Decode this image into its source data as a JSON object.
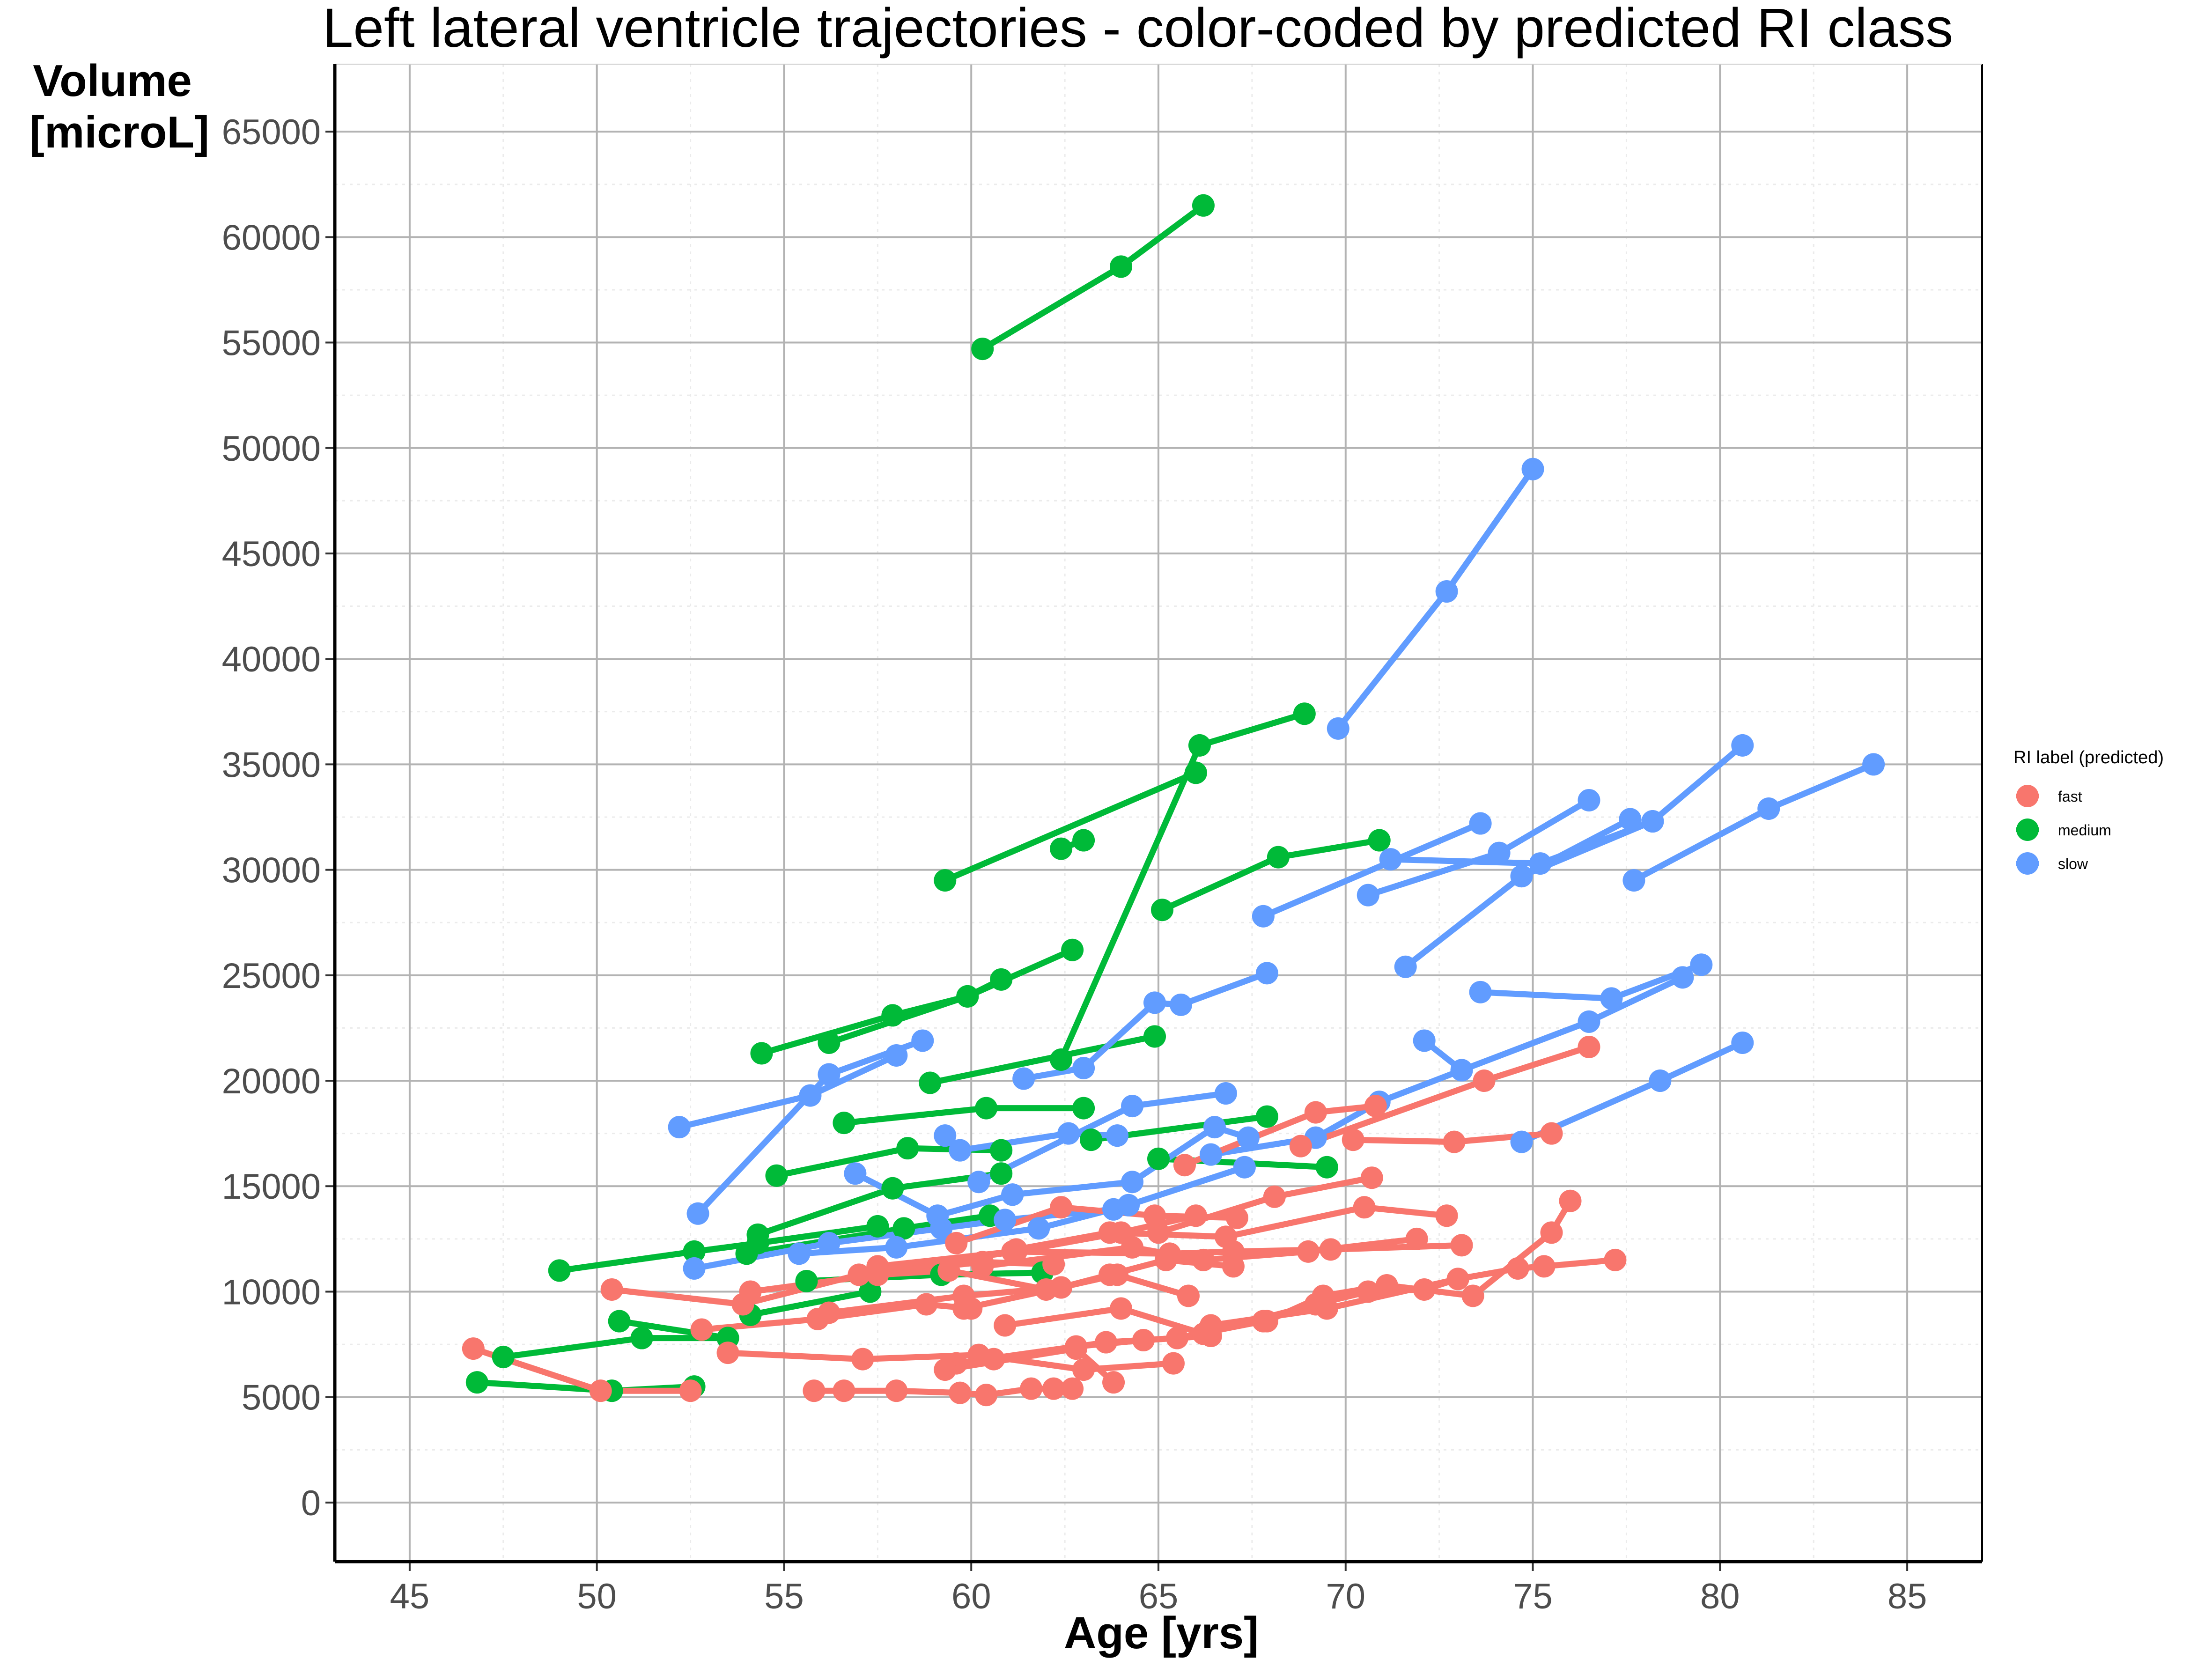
{
  "chart_data": {
    "type": "line",
    "title": "Left lateral ventricle trajectories - color-coded by predicted RI class",
    "xlabel": "Age [yrs]",
    "ylabel": [
      "Volume",
      "[microL]"
    ],
    "xlim": [
      43,
      87
    ],
    "ylim": [
      -2800,
      68200
    ],
    "x_ticks": [
      45,
      50,
      55,
      60,
      65,
      70,
      75,
      80,
      85
    ],
    "y_ticks": [
      0,
      5000,
      10000,
      15000,
      20000,
      25000,
      30000,
      35000,
      40000,
      45000,
      50000,
      55000,
      60000,
      65000
    ],
    "grid": true,
    "legend": {
      "title": "RI label (predicted)",
      "placement": "right",
      "entries": [
        {
          "name": "fast",
          "color": "#F8766D"
        },
        {
          "name": "medium",
          "color": "#00BA38"
        },
        {
          "name": "slow",
          "color": "#619CFF"
        }
      ]
    },
    "series": [
      {
        "name": "medium",
        "color": "#00BA38",
        "x": [
          60.3,
          64.0,
          66.2
        ],
        "y": [
          54700,
          58600,
          61500
        ]
      },
      {
        "name": "medium",
        "color": "#00BA38",
        "x": [
          62.4,
          63.0
        ],
        "y": [
          31000,
          31400
        ]
      },
      {
        "name": "medium",
        "color": "#00BA38",
        "x": [
          59.3,
          66.0
        ],
        "y": [
          29500,
          34600
        ]
      },
      {
        "name": "medium",
        "color": "#00BA38",
        "x": [
          62.4,
          66.1,
          68.9
        ],
        "y": [
          21000,
          35900,
          37400
        ]
      },
      {
        "name": "medium",
        "color": "#00BA38",
        "x": [
          65.1,
          68.2,
          70.9
        ],
        "y": [
          28100,
          30600,
          31400
        ]
      },
      {
        "name": "medium",
        "color": "#00BA38",
        "x": [
          54.4,
          57.9,
          59.9,
          60.8
        ],
        "y": [
          21300,
          23100,
          24000,
          24800
        ]
      },
      {
        "name": "medium",
        "color": "#00BA38",
        "x": [
          56.2,
          59.9,
          62.7
        ],
        "y": [
          21800,
          24000,
          26200
        ]
      },
      {
        "name": "medium",
        "color": "#00BA38",
        "x": [
          58.9,
          64.9
        ],
        "y": [
          19900,
          22100
        ]
      },
      {
        "name": "medium",
        "color": "#00BA38",
        "x": [
          56.6,
          60.4,
          63.0
        ],
        "y": [
          18000,
          18700,
          18700
        ]
      },
      {
        "name": "medium",
        "color": "#00BA38",
        "x": [
          54.8,
          58.3,
          60.8
        ],
        "y": [
          15500,
          16800,
          16700
        ]
      },
      {
        "name": "medium",
        "color": "#00BA38",
        "x": [
          63.2,
          67.9
        ],
        "y": [
          17200,
          18300
        ]
      },
      {
        "name": "medium",
        "color": "#00BA38",
        "x": [
          65.0,
          69.5
        ],
        "y": [
          16300,
          15900
        ]
      },
      {
        "name": "medium",
        "color": "#00BA38",
        "x": [
          54.3,
          57.9,
          60.8
        ],
        "y": [
          12700,
          14900,
          15600
        ]
      },
      {
        "name": "medium",
        "color": "#00BA38",
        "x": [
          49.0,
          52.6,
          54.3,
          57.5
        ],
        "y": [
          11000,
          11900,
          12300,
          13100
        ]
      },
      {
        "name": "medium",
        "color": "#00BA38",
        "x": [
          54.0,
          58.2,
          60.5
        ],
        "y": [
          11800,
          13000,
          13600
        ]
      },
      {
        "name": "medium",
        "color": "#00BA38",
        "x": [
          55.6,
          59.2,
          61.9
        ],
        "y": [
          10500,
          10800,
          10900
        ]
      },
      {
        "name": "medium",
        "color": "#00BA38",
        "x": [
          50.6,
          53.5
        ],
        "y": [
          8600,
          7800
        ]
      },
      {
        "name": "medium",
        "color": "#00BA38",
        "x": [
          51.2,
          53.5
        ],
        "y": [
          7800,
          7800
        ]
      },
      {
        "name": "medium",
        "color": "#00BA38",
        "x": [
          47.5,
          51.2
        ],
        "y": [
          6900,
          7800
        ]
      },
      {
        "name": "medium",
        "color": "#00BA38",
        "x": [
          46.8,
          50.4,
          52.6
        ],
        "y": [
          5700,
          5300,
          5500
        ]
      },
      {
        "name": "medium",
        "color": "#00BA38",
        "x": [
          54.1,
          57.3
        ],
        "y": [
          8900,
          10000
        ]
      },
      {
        "name": "slow",
        "color": "#619CFF",
        "x": [
          69.8,
          72.7,
          75.0
        ],
        "y": [
          36700,
          43200,
          49000
        ]
      },
      {
        "name": "slow",
        "color": "#619CFF",
        "x": [
          67.8,
          73.6
        ],
        "y": [
          27800,
          32200
        ]
      },
      {
        "name": "slow",
        "color": "#619CFF",
        "x": [
          70.6,
          74.1,
          76.5
        ],
        "y": [
          28800,
          30800,
          33300
        ]
      },
      {
        "name": "slow",
        "color": "#619CFF",
        "x": [
          71.2,
          75.2,
          78.2
        ],
        "y": [
          30500,
          30300,
          32300
        ]
      },
      {
        "name": "slow",
        "color": "#619CFF",
        "x": [
          74.7,
          77.6
        ],
        "y": [
          29700,
          32400
        ]
      },
      {
        "name": "slow",
        "color": "#619CFF",
        "x": [
          77.7,
          81.3,
          84.1
        ],
        "y": [
          29500,
          32900,
          35000
        ]
      },
      {
        "name": "slow",
        "color": "#619CFF",
        "x": [
          71.6,
          74.7,
          78.2,
          80.6
        ],
        "y": [
          25400,
          29700,
          32300,
          35900
        ]
      },
      {
        "name": "slow",
        "color": "#619CFF",
        "x": [
          73.6,
          77.1,
          79.5
        ],
        "y": [
          24200,
          23900,
          25500
        ]
      },
      {
        "name": "slow",
        "color": "#619CFF",
        "x": [
          72.1,
          73.1,
          76.5,
          79.0
        ],
        "y": [
          21900,
          20500,
          22800,
          24900
        ]
      },
      {
        "name": "slow",
        "color": "#619CFF",
        "x": [
          74.7,
          78.4,
          80.6
        ],
        "y": [
          17100,
          20000,
          21800
        ]
      },
      {
        "name": "slow",
        "color": "#619CFF",
        "x": [
          52.2,
          55.7,
          58.0
        ],
        "y": [
          17800,
          19300,
          21200
        ]
      },
      {
        "name": "slow",
        "color": "#619CFF",
        "x": [
          52.7,
          56.2,
          58.7
        ],
        "y": [
          13700,
          20300,
          21900
        ]
      },
      {
        "name": "slow",
        "color": "#619CFF",
        "x": [
          61.4,
          63.0,
          64.9,
          65.6,
          67.9
        ],
        "y": [
          20100,
          20600,
          23700,
          23600,
          25100
        ]
      },
      {
        "name": "slow",
        "color": "#619CFF",
        "x": [
          59.3,
          59.7,
          62.6,
          63.9
        ],
        "y": [
          17400,
          16700,
          17500,
          17400
        ]
      },
      {
        "name": "slow",
        "color": "#619CFF",
        "x": [
          60.2,
          64.3,
          66.8
        ],
        "y": [
          15200,
          18800,
          19400
        ]
      },
      {
        "name": "slow",
        "color": "#619CFF",
        "x": [
          56.9,
          59.1,
          61.1
        ],
        "y": [
          15600,
          13600,
          14600
        ]
      },
      {
        "name": "slow",
        "color": "#619CFF",
        "x": [
          66.4,
          69.2,
          70.9,
          73.1
        ],
        "y": [
          16500,
          17300,
          19000,
          20500
        ]
      },
      {
        "name": "slow",
        "color": "#619CFF",
        "x": [
          61.1,
          64.3,
          66.5,
          67.4
        ],
        "y": [
          14600,
          15200,
          17800,
          17300
        ]
      },
      {
        "name": "slow",
        "color": "#619CFF",
        "x": [
          52.6,
          56.2,
          59.2,
          60.9,
          63.8
        ],
        "y": [
          11100,
          12300,
          13000,
          13400,
          13900
        ]
      },
      {
        "name": "slow",
        "color": "#619CFF",
        "x": [
          55.4,
          58.0,
          61.8,
          64.2,
          67.3
        ],
        "y": [
          11800,
          12100,
          13000,
          14100,
          15900
        ]
      },
      {
        "name": "fast",
        "color": "#F8766D",
        "x": [
          65.7,
          69.2,
          70.8
        ],
        "y": [
          16000,
          18500,
          18800
        ]
      },
      {
        "name": "fast",
        "color": "#F8766D",
        "x": [
          70.2,
          72.9,
          75.5
        ],
        "y": [
          17200,
          17100,
          17500
        ]
      },
      {
        "name": "fast",
        "color": "#F8766D",
        "x": [
          68.8,
          73.7,
          76.5
        ],
        "y": [
          16900,
          20000,
          21600
        ]
      },
      {
        "name": "fast",
        "color": "#F8766D",
        "x": [
          65.0,
          68.1,
          70.7
        ],
        "y": [
          12800,
          14500,
          15400
        ]
      },
      {
        "name": "fast",
        "color": "#F8766D",
        "x": [
          59.6,
          62.4,
          64.9,
          67.1
        ],
        "y": [
          12300,
          14000,
          13600,
          13500
        ]
      },
      {
        "name": "fast",
        "color": "#F8766D",
        "x": [
          57.5,
          61.2,
          64.0,
          66.0
        ],
        "y": [
          11000,
          11900,
          12800,
          13600
        ]
      },
      {
        "name": "fast",
        "color": "#F8766D",
        "x": [
          61.2,
          63.7,
          66.8,
          70.5,
          72.7
        ],
        "y": [
          12000,
          12800,
          12600,
          14000,
          13600
        ]
      },
      {
        "name": "fast",
        "color": "#F8766D",
        "x": [
          57.5,
          61.1,
          65.3,
          67.0,
          69.6,
          73.1
        ],
        "y": [
          11200,
          11900,
          11800,
          11900,
          12000,
          12200
        ]
      },
      {
        "name": "fast",
        "color": "#F8766D",
        "x": [
          60.3,
          64.3,
          66.2,
          69.0,
          71.9
        ],
        "y": [
          11200,
          12100,
          11500,
          11900,
          12500
        ]
      },
      {
        "name": "fast",
        "color": "#F8766D",
        "x": [
          50.4,
          53.9,
          57.0,
          60.3,
          62.2
        ],
        "y": [
          10100,
          9400,
          10800,
          11400,
          11300
        ]
      },
      {
        "name": "fast",
        "color": "#F8766D",
        "x": [
          54.1,
          57.5,
          59.4,
          62.0
        ],
        "y": [
          10000,
          10800,
          11000,
          10100
        ]
      },
      {
        "name": "fast",
        "color": "#F8766D",
        "x": [
          52.8,
          55.9,
          58.8,
          60.0
        ],
        "y": [
          8200,
          8700,
          9400,
          9200
        ]
      },
      {
        "name": "fast",
        "color": "#F8766D",
        "x": [
          56.2,
          59.8,
          62.4,
          63.9,
          65.8
        ],
        "y": [
          9000,
          9800,
          10200,
          10800,
          9800
        ]
      },
      {
        "name": "fast",
        "color": "#F8766D",
        "x": [
          59.8,
          62.4,
          63.7,
          65.2,
          67.0
        ],
        "y": [
          9200,
          10200,
          10800,
          11500,
          11200
        ]
      },
      {
        "name": "fast",
        "color": "#F8766D",
        "x": [
          60.9,
          64.0,
          66.2,
          69.2,
          70.6,
          72.1,
          73.0
        ],
        "y": [
          8400,
          9200,
          8000,
          9400,
          10000,
          10100,
          10600
        ]
      },
      {
        "name": "fast",
        "color": "#F8766D",
        "x": [
          67.9,
          69.4,
          71.1,
          73.4,
          75.5,
          76.0
        ],
        "y": [
          8600,
          9800,
          10300,
          9800,
          12800,
          14300
        ]
      },
      {
        "name": "fast",
        "color": "#F8766D",
        "x": [
          66.4,
          69.5,
          73.0,
          74.6,
          75.3,
          77.2
        ],
        "y": [
          8400,
          9200,
          10600,
          11100,
          11200,
          11500
        ]
      },
      {
        "name": "fast",
        "color": "#F8766D",
        "x": [
          60.6,
          63.6,
          65.5,
          67.8
        ],
        "y": [
          6800,
          7600,
          7800,
          8600
        ]
      },
      {
        "name": "fast",
        "color": "#F8766D",
        "x": [
          59.6,
          62.8,
          64.6,
          66.4
        ],
        "y": [
          6600,
          7400,
          7700,
          7900
        ]
      },
      {
        "name": "fast",
        "color": "#F8766D",
        "x": [
          53.5,
          57.1,
          60.2,
          63.0,
          65.4
        ],
        "y": [
          7100,
          6800,
          7000,
          6300,
          6600
        ]
      },
      {
        "name": "fast",
        "color": "#F8766D",
        "x": [
          59.3,
          62.8,
          63.8
        ],
        "y": [
          6300,
          7300,
          5700
        ]
      },
      {
        "name": "fast",
        "color": "#F8766D",
        "x": [
          46.7,
          50.1,
          52.5
        ],
        "y": [
          7300,
          5300,
          5300
        ]
      },
      {
        "name": "fast",
        "color": "#F8766D",
        "x": [
          55.8,
          56.6,
          58.0,
          59.7,
          60.4,
          61.6,
          62.2,
          62.7
        ],
        "y": [
          5300,
          5300,
          5300,
          5200,
          5100,
          5400,
          5400,
          5400
        ]
      }
    ]
  }
}
